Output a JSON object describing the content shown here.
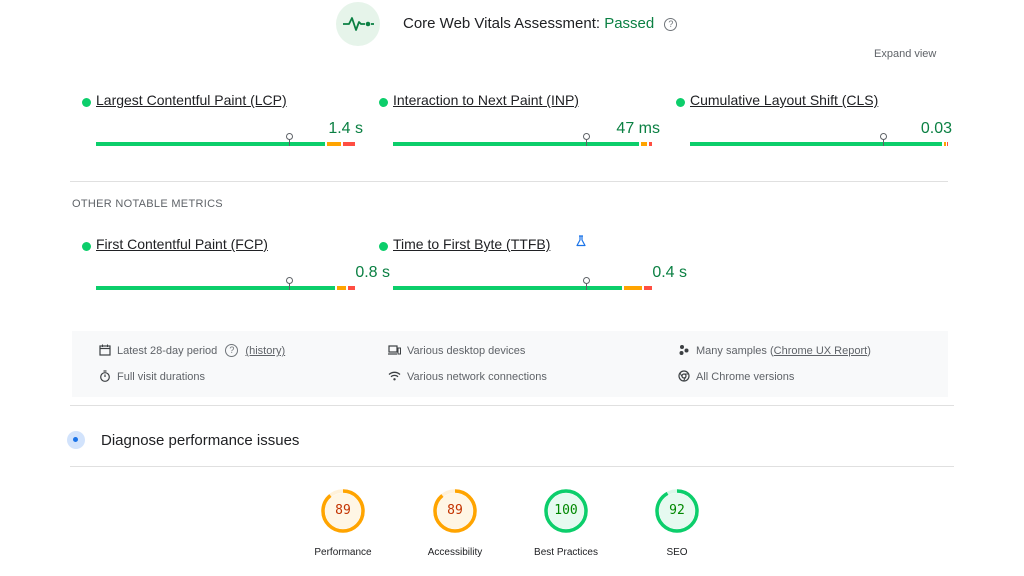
{
  "header": {
    "title": "Core Web Vitals Assessment:",
    "status": "Passed",
    "help": "?",
    "expand": "Expand view"
  },
  "core_metrics": [
    {
      "label": "Largest Contentful Paint (LCP)",
      "value": "1.4 s",
      "status": "good"
    },
    {
      "label": "Interaction to Next Paint (INP)",
      "value": "47 ms",
      "status": "good"
    },
    {
      "label": "Cumulative Layout Shift (CLS)",
      "value": "0.03",
      "status": "good"
    }
  ],
  "other_title": "OTHER NOTABLE METRICS",
  "other_metrics": [
    {
      "label": "First Contentful Paint (FCP)",
      "value": "0.8 s",
      "status": "good"
    },
    {
      "label": "Time to First Byte (TTFB)",
      "value": "0.4 s",
      "status": "good",
      "icon": "flask-icon"
    }
  ],
  "info": {
    "period": "Latest 28-day period",
    "help": "?",
    "history": "(history)",
    "visit": "Full visit durations",
    "devices": "Various desktop devices",
    "network": "Various network connections",
    "samples": "Many samples",
    "crux_open": "(",
    "crux": "Chrome UX Report",
    "crux_close": ")",
    "versions": "All Chrome versions"
  },
  "diagnose": {
    "title": "Diagnose performance issues"
  },
  "scores": [
    {
      "label": "Performance",
      "value": "89",
      "score": 89,
      "color": "#ffa400",
      "text_color": "#c33300"
    },
    {
      "label": "Accessibility",
      "value": "89",
      "score": 89,
      "color": "#ffa400",
      "text_color": "#c33300"
    },
    {
      "label": "Best Practices",
      "value": "100",
      "score": 100,
      "color": "#0cce6b",
      "text_color": "#008800"
    },
    {
      "label": "SEO",
      "value": "92",
      "score": 92,
      "color": "#0cce6b",
      "text_color": "#008800"
    }
  ],
  "colors": {
    "good": "#0cce6b",
    "average": "#ffa400",
    "poor": "#ff4e42",
    "passed_text": "#0b8043"
  }
}
